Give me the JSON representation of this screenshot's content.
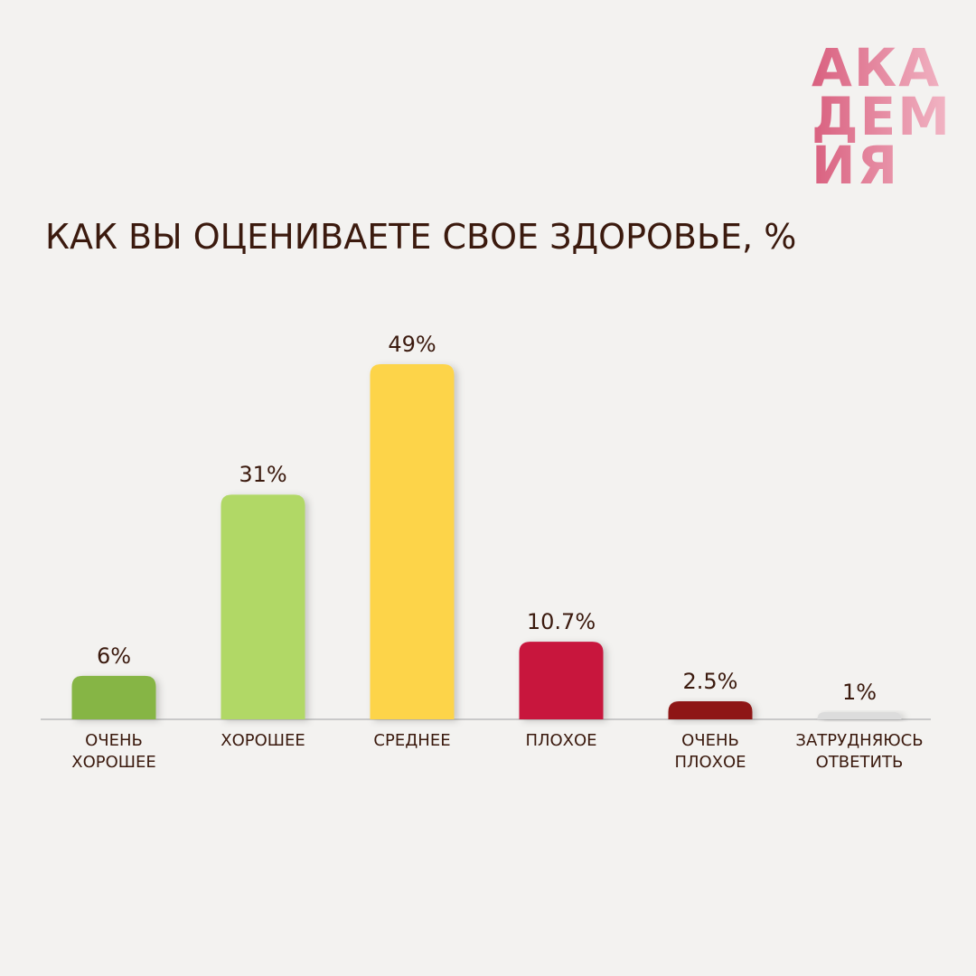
{
  "logo": [
    "АКА",
    "ДЕМ",
    "ИЯ"
  ],
  "chart_data": {
    "type": "bar",
    "title": "КАК ВЫ ОЦЕНИВАЕТЕ СВОЕ ЗДОРОВЬЕ, %",
    "categories": [
      "ОЧЕНЬ ХОРОШЕЕ",
      "ХОРОШЕЕ",
      "СРЕДНЕЕ",
      "ПЛОХОЕ",
      "ОЧЕНЬ ПЛОХОЕ",
      "ЗАТРУДНЯЮСЬ ОТВЕТИТЬ"
    ],
    "values": [
      6,
      31,
      49,
      10.7,
      2.5,
      1
    ],
    "value_labels": [
      "6%",
      "31%",
      "49%",
      "10.7%",
      "2.5%",
      "1%"
    ],
    "colors": [
      "#86b545",
      "#b1d866",
      "#fdd44a",
      "#c8123e",
      "#8e1612",
      "#dcdcdc"
    ]
  }
}
